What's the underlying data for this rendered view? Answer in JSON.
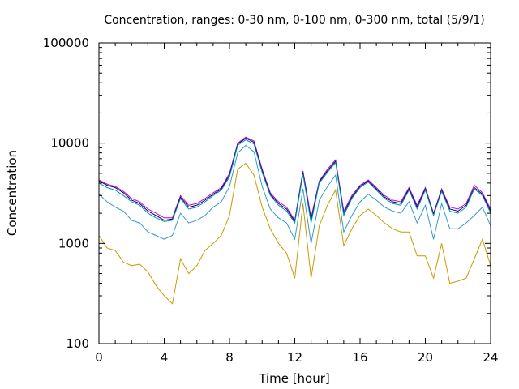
{
  "chart_data": {
    "type": "line",
    "title": "Concentration, ranges: 0-30 nm, 0-100 nm, 0-300 nm, total (5/9/1)",
    "xlabel": "Time [hour]",
    "ylabel": "Concentration",
    "xlim": [
      0,
      24
    ],
    "ylim": [
      100,
      100000
    ],
    "yscale": "log",
    "grid": false,
    "legend": "none",
    "x_ticks": [
      "0",
      "4",
      "8",
      "12",
      "16",
      "20",
      "24"
    ],
    "x_tick_values": [
      0,
      4,
      8,
      12,
      16,
      20,
      24
    ],
    "y_ticks": [
      "100",
      "1000",
      "10000",
      "100000"
    ],
    "y_tick_values": [
      100,
      1000,
      10000,
      100000
    ],
    "x": [
      0,
      0.5,
      1,
      1.5,
      2,
      2.5,
      3,
      3.5,
      4,
      4.5,
      5,
      5.5,
      6,
      6.5,
      7,
      7.5,
      8,
      8.5,
      9,
      9.5,
      10,
      10.5,
      11,
      11.5,
      12,
      12.5,
      13,
      13.5,
      14,
      14.5,
      15,
      15.5,
      16,
      16.5,
      17,
      17.5,
      18,
      18.5,
      19,
      19.5,
      20,
      20.5,
      21,
      21.5,
      22,
      22.5,
      23,
      23.5,
      24
    ],
    "series": [
      {
        "color": "#cc00cc",
        "values": [
          4300,
          3900,
          3700,
          3300,
          2800,
          2600,
          2200,
          2000,
          1800,
          1800,
          3000,
          2400,
          2500,
          2800,
          3200,
          3600,
          5000,
          10000,
          11500,
          10500,
          5500,
          3200,
          2600,
          2300,
          1700,
          5300,
          1800,
          4200,
          5500,
          6800,
          2100,
          3000,
          3800,
          4300,
          3600,
          3000,
          2700,
          2600,
          3600,
          2400,
          3600,
          2000,
          3500,
          2300,
          2200,
          2500,
          3800,
          3200,
          2200
        ]
      },
      {
        "color": "#000080",
        "values": [
          4200,
          3800,
          3600,
          3200,
          2700,
          2500,
          2100,
          1900,
          1700,
          1750,
          2900,
          2300,
          2400,
          2700,
          3100,
          3500,
          4800,
          9800,
          11200,
          10200,
          5300,
          3100,
          2500,
          2200,
          1650,
          5100,
          1700,
          4100,
          5300,
          6600,
          2000,
          2900,
          3700,
          4200,
          3500,
          2900,
          2600,
          2500,
          3500,
          2300,
          3500,
          1950,
          3400,
          2200,
          2100,
          2400,
          3600,
          3100,
          2100
        ]
      },
      {
        "color": "#009999",
        "values": [
          4000,
          3600,
          3400,
          3000,
          2600,
          2400,
          2000,
          1800,
          1650,
          1700,
          2800,
          2200,
          2300,
          2600,
          3000,
          3400,
          4600,
          9500,
          10800,
          9800,
          5100,
          3000,
          2400,
          2100,
          1600,
          4900,
          1600,
          4000,
          5100,
          6400,
          1900,
          2800,
          3600,
          4100,
          3400,
          2800,
          2500,
          2400,
          3400,
          2200,
          3400,
          1900,
          3300,
          2100,
          2000,
          2300,
          3500,
          3000,
          2000
        ]
      },
      {
        "color": "#3399cc",
        "values": [
          3100,
          2600,
          2300,
          2100,
          1700,
          1600,
          1300,
          1200,
          1100,
          1200,
          2000,
          1600,
          1700,
          1900,
          2300,
          2600,
          3700,
          8000,
          9500,
          8200,
          3700,
          2200,
          1800,
          1600,
          1100,
          3500,
          1000,
          2700,
          3700,
          4800,
          1300,
          1900,
          2600,
          3100,
          2700,
          2300,
          2100,
          2000,
          2600,
          1600,
          2400,
          1100,
          2500,
          1400,
          1400,
          1600,
          1900,
          2300,
          1500
        ]
      },
      {
        "color": "#cc9900",
        "values": [
          1200,
          900,
          850,
          650,
          600,
          620,
          520,
          380,
          300,
          250,
          700,
          500,
          600,
          850,
          1000,
          1200,
          1900,
          5500,
          6300,
          4800,
          2300,
          1400,
          1000,
          800,
          450,
          2500,
          450,
          1500,
          2400,
          3400,
          950,
          1400,
          1900,
          2200,
          1900,
          1600,
          1400,
          1300,
          1300,
          750,
          750,
          450,
          1000,
          400,
          420,
          450,
          700,
          1100,
          600
        ]
      }
    ]
  }
}
